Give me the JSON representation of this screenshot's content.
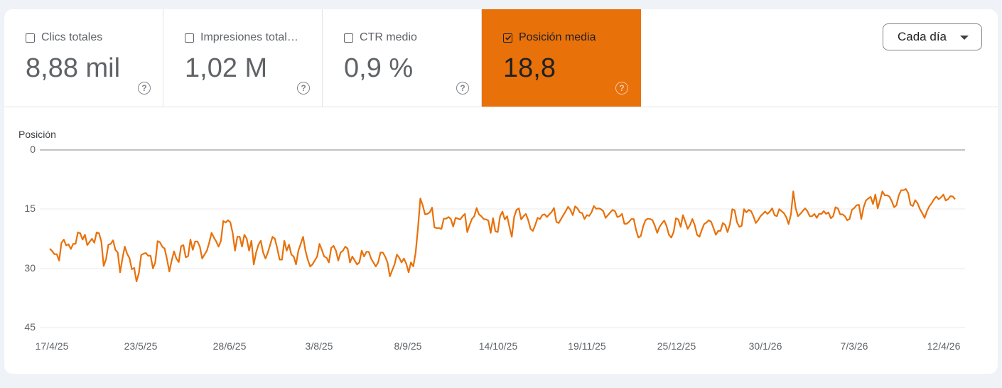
{
  "metrics": [
    {
      "label": "Clics totales",
      "value": "8,88 mil",
      "checked": false
    },
    {
      "label": "Impresiones total…",
      "value": "1,02 M",
      "checked": false
    },
    {
      "label": "CTR medio",
      "value": "0,9 %",
      "checked": false
    },
    {
      "label": "Posición media",
      "value": "18,8",
      "checked": true
    }
  ],
  "colors": {
    "accent": "#e8710a",
    "background": "#eff2f7",
    "card": "#ffffff"
  },
  "granularity_select": {
    "value": "Cada día"
  },
  "chart_data": {
    "type": "line",
    "title": "",
    "ylabel": "Posición",
    "xlabel": "",
    "y_inverted": true,
    "ylim": [
      0,
      45
    ],
    "yticks": [
      "0",
      "15",
      "30",
      "45"
    ],
    "xticks": [
      "17/4/25",
      "23/5/25",
      "28/6/25",
      "3/8/25",
      "8/9/25",
      "14/10/25",
      "19/11/25",
      "25/12/25",
      "30/1/26",
      "7/3/26",
      "12/4/26"
    ],
    "grid": true,
    "legend": "none",
    "series": [
      {
        "name": "Posición media",
        "color": "#e8710a",
        "values": [
          25,
          25.6,
          26.4,
          26.4,
          28,
          23.5,
          22.7,
          24.2,
          23.9,
          25.1,
          23.8,
          23.8,
          20.9,
          21.1,
          22.7,
          21.5,
          24.1,
          23.3,
          22.5,
          23.5,
          20.9,
          21.1,
          23.2,
          29.4,
          27.7,
          24,
          23.8,
          22.9,
          25.3,
          26,
          31,
          27.5,
          24.5,
          26.3,
          27.4,
          30.2,
          29.9,
          33.3,
          31.2,
          26.6,
          26.3,
          26.1,
          26.8,
          26.8,
          30,
          28.5,
          23.1,
          23.4,
          24.5,
          25,
          27.7,
          30.8,
          28,
          25.7,
          27.5,
          28.4,
          24.4,
          24.1,
          27.2,
          26.9,
          22.7,
          25.3,
          23.2,
          23.2,
          24.5,
          27.5,
          26.5,
          25.5,
          23.5,
          21,
          22.2,
          23.2,
          24.5,
          23,
          18,
          18.4,
          17.8,
          18.3,
          21,
          25.5,
          22,
          22,
          24.5,
          21.5,
          22.5,
          25.5,
          23,
          29,
          26,
          24,
          23,
          26,
          27.5,
          26,
          24,
          22,
          22.5,
          25,
          27.8,
          27.8,
          23,
          25.5,
          24,
          26.5,
          27,
          29,
          25.5,
          23.8,
          22,
          25.5,
          27.8,
          29.5,
          29,
          28,
          27,
          23.8,
          25.3,
          27,
          27.3,
          28.5,
          24.8,
          24.3,
          25.5,
          28,
          26,
          25.5,
          24.5,
          25,
          28.5,
          27,
          28,
          29,
          28.5,
          25.5,
          27,
          25.8,
          25.8,
          27.5,
          28.5,
          29.5,
          28.5,
          26,
          26,
          27,
          28.5,
          32,
          30.5,
          29,
          26.5,
          27.3,
          28.5,
          27.5,
          28.8,
          31,
          28.5,
          29.5,
          26,
          19.7,
          12.3,
          14,
          16.3,
          16.2,
          15.8,
          14.6,
          19.6,
          19.8,
          19.8,
          20,
          17.4,
          17.4,
          17,
          17.5,
          19.4,
          17.2,
          17.4,
          17.6,
          16.8,
          16.2,
          20.8,
          19,
          17.5,
          16.8,
          14.7,
          16.3,
          16.8,
          17.5,
          17.6,
          17.9,
          21,
          17.3,
          20.6,
          20.8,
          16.8,
          15.6,
          17.6,
          16.8,
          19.5,
          22,
          17,
          15.2,
          14.8,
          17.6,
          16.8,
          16.2,
          17.8,
          20,
          20.5,
          19,
          17.2,
          17.5,
          16.5,
          16.3,
          17,
          16.3,
          15.7,
          14.7,
          18.2,
          18.5,
          17.5,
          16.5,
          15.5,
          14.4,
          15.2,
          16.5,
          14.3,
          14.8,
          15.8,
          16,
          17.5,
          16.5,
          16.7,
          15.8,
          14.2,
          14.9,
          14.8,
          15,
          15.5,
          17.2,
          16.5,
          15.8,
          15.2,
          15.5,
          17,
          16.8,
          16.2,
          18.7,
          18.7,
          18.2,
          17.5,
          17.5,
          20.3,
          22.2,
          21.8,
          19.4,
          17.8,
          17.4,
          17.5,
          17.8,
          19.2,
          21,
          19.5,
          18.6,
          17.9,
          19.3,
          21.5,
          22.2,
          20.8,
          17.3,
          17.6,
          19.5,
          16.5,
          18.2,
          20,
          19,
          17.5,
          19,
          21.5,
          22,
          20.3,
          18.8,
          18.4,
          17.8,
          18.2,
          19.8,
          21.5,
          20.5,
          20.5,
          18.5,
          19,
          20.8,
          18.8,
          15,
          15.3,
          18.3,
          19.5,
          19.2,
          15,
          15.8,
          15.2,
          15.5,
          16.8,
          18.5,
          17.8,
          16.8,
          16.2,
          15.6,
          16.2,
          15.6,
          14.8,
          16.5,
          16.8,
          15,
          15.5,
          16,
          17,
          18.8,
          16.3,
          10.5,
          14.7,
          16.8,
          16.2,
          15.5,
          14.8,
          15.5,
          16.8,
          16.8,
          16.2,
          17.2,
          16.2,
          16.2,
          15.5,
          16.2,
          15.8,
          17.3,
          16.8,
          14.5,
          14.8,
          16.3,
          16.3,
          16.8,
          17.8,
          17.5,
          15.2,
          14.7,
          14,
          13.9,
          17.5,
          14.5,
          12.8,
          12.3,
          11.9,
          13.7,
          11.3,
          14.8,
          12.7,
          10.5,
          11.5,
          11.5,
          11.8,
          13,
          14.5,
          14,
          11.5,
          10.2,
          10.2,
          9.9,
          10.9,
          13.9,
          14.2,
          12.7,
          13.5,
          15,
          16,
          17.2,
          15.5,
          14.3,
          13.5,
          12.5,
          11.8,
          12.5,
          12,
          11.3,
          12.8,
          12.5,
          11.7,
          11.8,
          12.5
        ]
      }
    ]
  }
}
